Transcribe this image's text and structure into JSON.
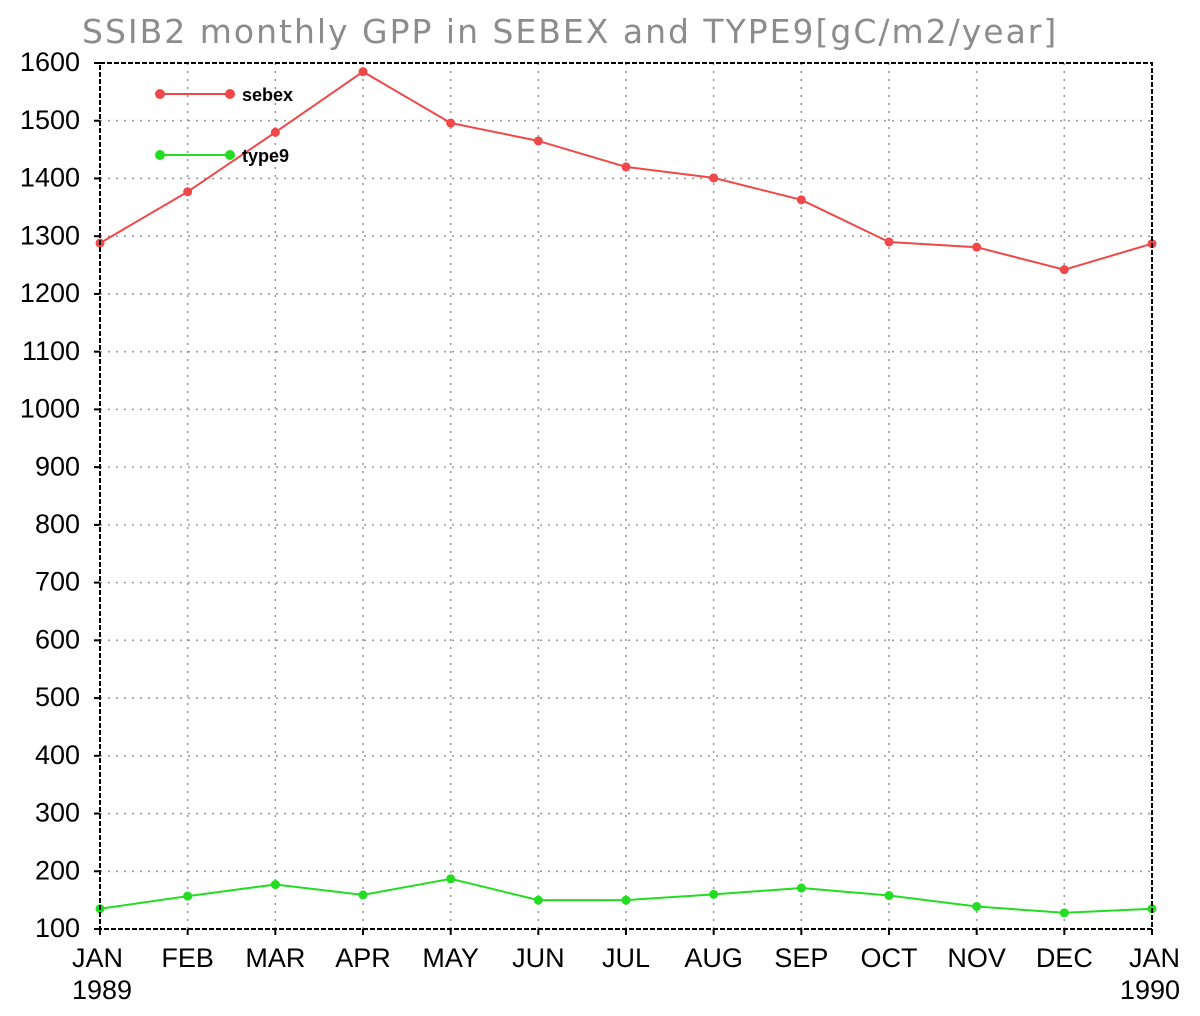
{
  "chart_data": {
    "type": "line",
    "title": "SSIB2 monthly GPP in SEBEX and TYPE9[gC/m2/year]",
    "x_labels": [
      {
        "label": "JAN",
        "sub": "1989"
      },
      {
        "label": "FEB",
        "sub": ""
      },
      {
        "label": "MAR",
        "sub": ""
      },
      {
        "label": "APR",
        "sub": ""
      },
      {
        "label": "MAY",
        "sub": ""
      },
      {
        "label": "JUN",
        "sub": ""
      },
      {
        "label": "JUL",
        "sub": ""
      },
      {
        "label": "AUG",
        "sub": ""
      },
      {
        "label": "SEP",
        "sub": ""
      },
      {
        "label": "OCT",
        "sub": ""
      },
      {
        "label": "NOV",
        "sub": ""
      },
      {
        "label": "DEC",
        "sub": ""
      },
      {
        "label": "JAN",
        "sub": "1990"
      }
    ],
    "x": [
      "1989-01",
      "1989-02",
      "1989-03",
      "1989-04",
      "1989-05",
      "1989-06",
      "1989-07",
      "1989-08",
      "1989-09",
      "1989-10",
      "1989-11",
      "1989-12",
      "1990-01"
    ],
    "ylim": [
      100,
      1600
    ],
    "yticks": [
      100,
      200,
      300,
      400,
      500,
      600,
      700,
      800,
      900,
      1000,
      1100,
      1200,
      1300,
      1400,
      1500,
      1600
    ],
    "grid": true,
    "legend_position": "top-left",
    "series": [
      {
        "name": "sebex",
        "color": "#f04848",
        "values": [
          1288,
          1377,
          1480,
          1585,
          1496,
          1465,
          1420,
          1401,
          1363,
          1290,
          1281,
          1242,
          1287
        ]
      },
      {
        "name": "type9",
        "color": "#22dd22",
        "values": [
          135,
          157,
          177,
          159,
          187,
          150,
          150,
          160,
          171,
          158,
          139,
          128,
          135
        ]
      }
    ]
  }
}
